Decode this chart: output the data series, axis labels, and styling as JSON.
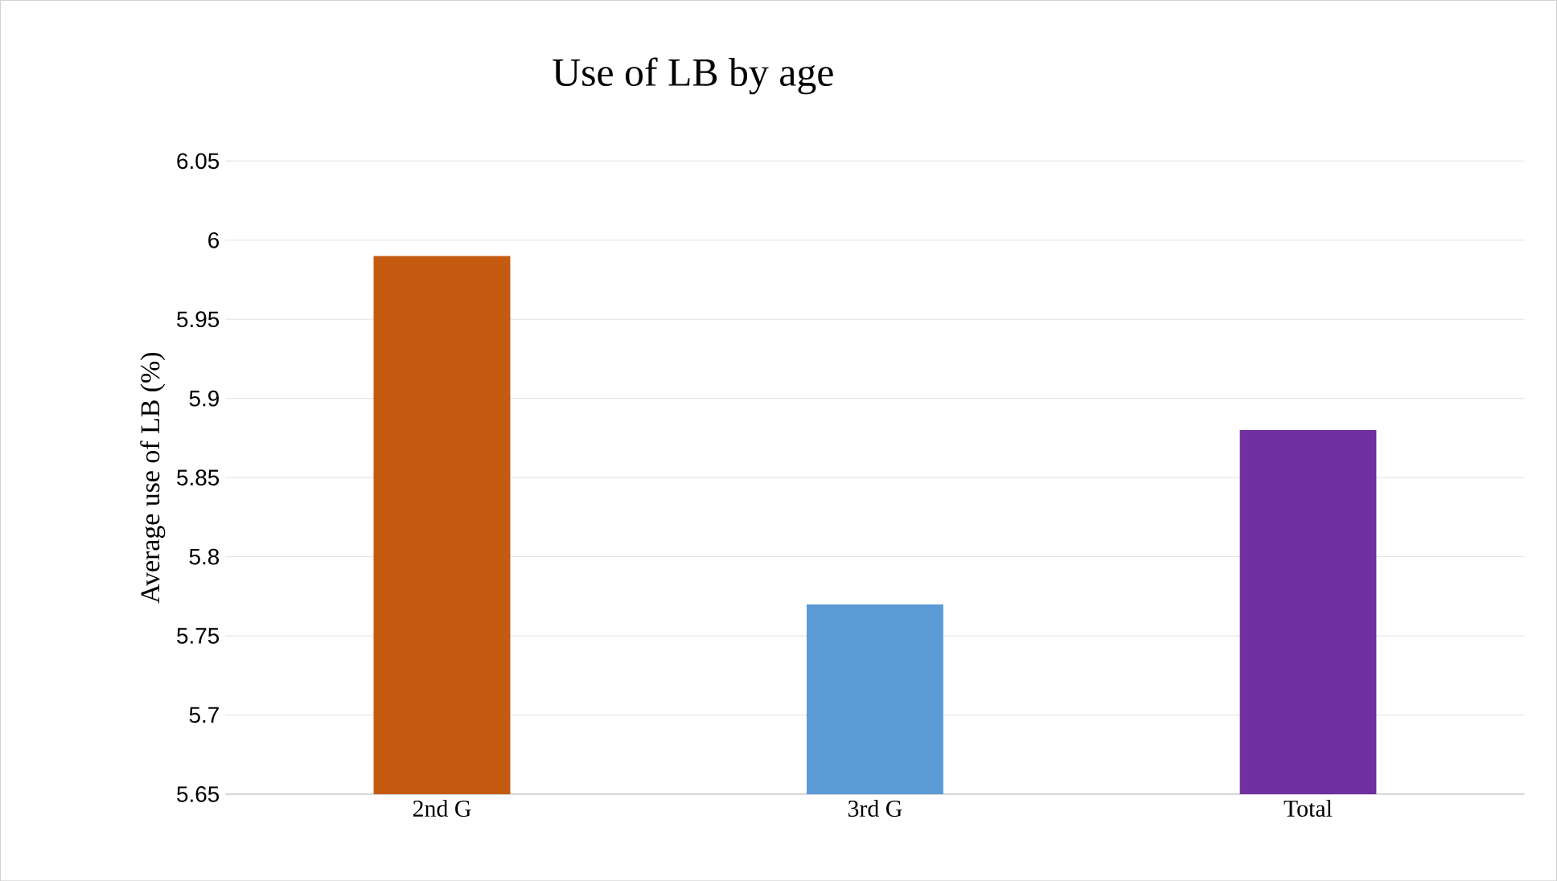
{
  "chart_data": {
    "type": "bar",
    "title": "Use of LB by age",
    "ylabel": "Average use of  LB  (%)",
    "categories": [
      "2nd G",
      "3rd G",
      "Total"
    ],
    "values": [
      5.99,
      5.77,
      5.88
    ],
    "colors": [
      "#c55a11",
      "#5b9bd5",
      "#7030a0"
    ],
    "ylim": [
      5.65,
      6.05
    ],
    "yticks": [
      5.65,
      5.7,
      5.75,
      5.8,
      5.85,
      5.9,
      5.95,
      6,
      6.05
    ],
    "grid": "y"
  }
}
